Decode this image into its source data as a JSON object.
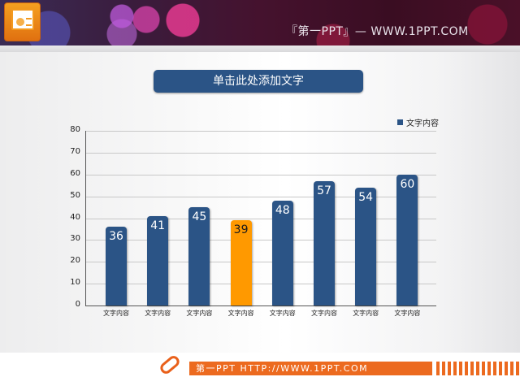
{
  "header": {
    "title": "『第一PPT』— WWW.1PPT.COM",
    "logo_icon": "powerpoint-icon"
  },
  "slide": {
    "title": "单击此处添加文字"
  },
  "footer": {
    "text": "第一PPT HTTP://WWW.1PPT.COM",
    "icon": "pencil-icon"
  },
  "colors": {
    "bar_primary": "#2b5486",
    "bar_highlight": "#ff9900",
    "footer_accent": "#ec6a1f"
  },
  "chart_data": {
    "type": "bar",
    "title": "",
    "xlabel": "",
    "ylabel": "",
    "ylim": [
      0,
      80
    ],
    "yticks": [
      0,
      10,
      20,
      30,
      40,
      50,
      60,
      70,
      80
    ],
    "grid": true,
    "legend_position": "top-right",
    "categories": [
      "文字内容",
      "文字内容",
      "文字内容",
      "文字内容",
      "文字内容",
      "文字内容",
      "文字内容",
      "文字内容"
    ],
    "series": [
      {
        "name": "文字内容",
        "values": [
          36,
          41,
          45,
          39,
          48,
          57,
          54,
          60
        ]
      }
    ],
    "highlighted_index": 3,
    "data_labels": [
      "36",
      "41",
      "45",
      "39",
      "48",
      "57",
      "54",
      "60"
    ]
  }
}
